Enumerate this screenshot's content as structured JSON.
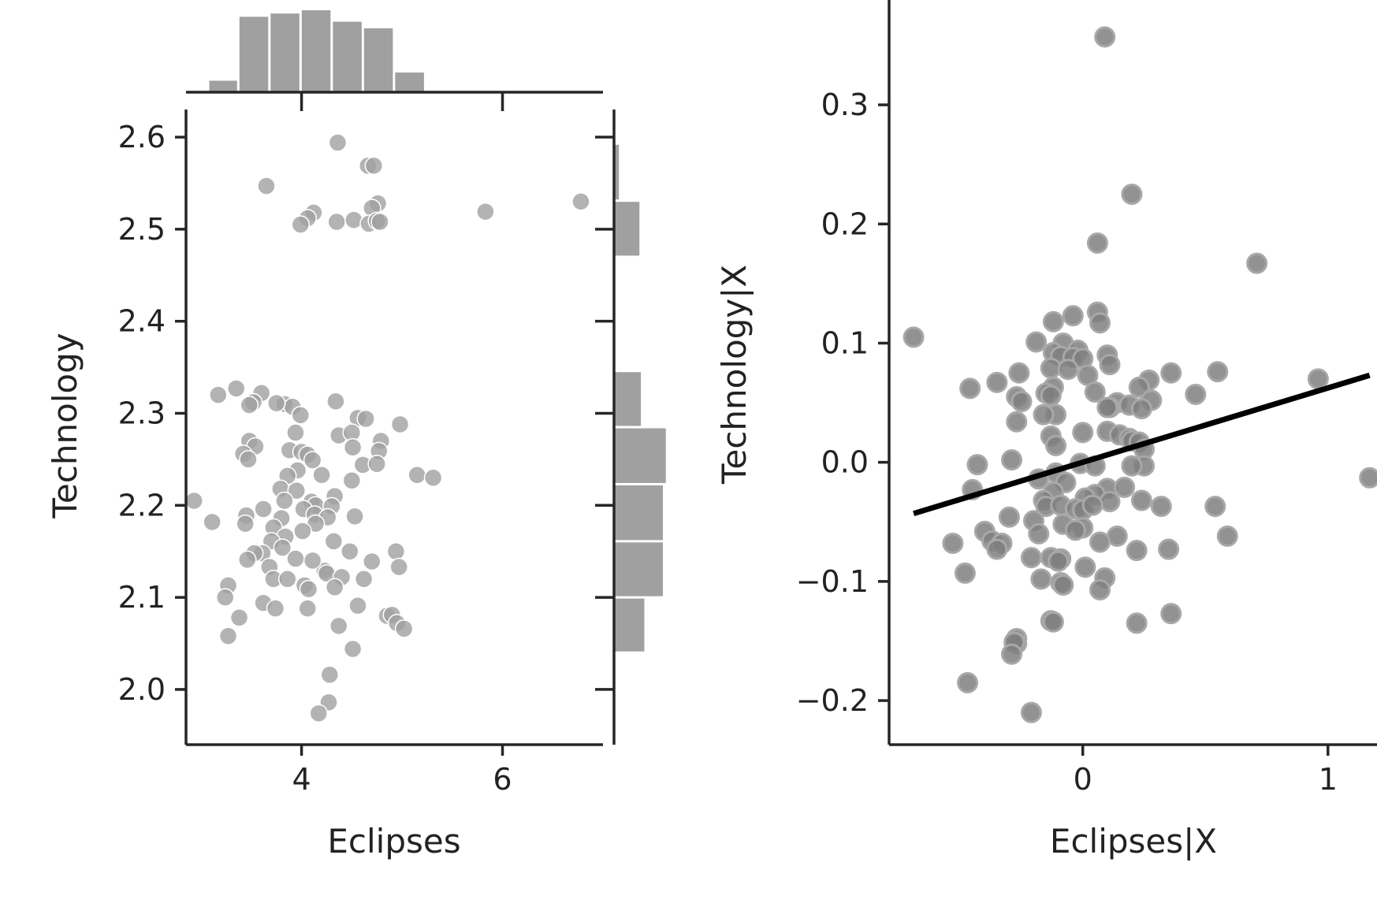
{
  "colors": {
    "marker": "#a0a0a0",
    "marker_edge": "#ffffff",
    "resid_marker": "#7f7f7f",
    "resid_edge": "#a8a8a8",
    "hist_bar": "#a0a0a0",
    "fit_line": "#000000",
    "axis": "#262626"
  },
  "chart_data": [
    {
      "type": "scatter",
      "panel": "joint",
      "xlabel": "Eclipses",
      "ylabel": "Technology",
      "xlim": [
        2.85,
        7.0
      ],
      "ylim": [
        1.94,
        2.63
      ],
      "xticks": [
        4,
        6
      ],
      "yticks": [
        2.0,
        2.1,
        2.2,
        2.3,
        2.4,
        2.5,
        2.6
      ],
      "xtick_labels": [
        "4",
        "6"
      ],
      "ytick_labels": [
        "2.0",
        "2.1",
        "2.2",
        "2.3",
        "2.4",
        "2.5",
        "2.6"
      ],
      "grid": false,
      "points": [
        [
          4.36,
          2.594
        ],
        [
          4.66,
          2.569
        ],
        [
          4.72,
          2.569
        ],
        [
          3.65,
          2.547
        ],
        [
          4.76,
          2.528
        ],
        [
          4.7,
          2.523
        ],
        [
          6.78,
          2.53
        ],
        [
          5.83,
          2.519
        ],
        [
          4.12,
          2.518
        ],
        [
          4.06,
          2.512
        ],
        [
          3.99,
          2.505
        ],
        [
          4.35,
          2.508
        ],
        [
          4.52,
          2.51
        ],
        [
          4.67,
          2.506
        ],
        [
          4.75,
          2.509
        ],
        [
          4.78,
          2.508
        ],
        [
          3.35,
          2.327
        ],
        [
          3.17,
          2.32
        ],
        [
          3.6,
          2.322
        ],
        [
          3.52,
          2.312
        ],
        [
          3.48,
          2.309
        ],
        [
          3.83,
          2.31
        ],
        [
          3.91,
          2.307
        ],
        [
          3.75,
          2.311
        ],
        [
          3.99,
          2.298
        ],
        [
          4.34,
          2.313
        ],
        [
          4.56,
          2.295
        ],
        [
          4.64,
          2.294
        ],
        [
          4.98,
          2.288
        ],
        [
          3.94,
          2.279
        ],
        [
          4.37,
          2.276
        ],
        [
          4.5,
          2.279
        ],
        [
          3.48,
          2.27
        ],
        [
          3.54,
          2.264
        ],
        [
          4.79,
          2.27
        ],
        [
          3.88,
          2.26
        ],
        [
          4.0,
          2.258
        ],
        [
          4.06,
          2.255
        ],
        [
          4.77,
          2.259
        ],
        [
          4.51,
          2.263
        ],
        [
          3.42,
          2.256
        ],
        [
          3.47,
          2.25
        ],
        [
          4.11,
          2.249
        ],
        [
          4.61,
          2.244
        ],
        [
          4.75,
          2.245
        ],
        [
          3.96,
          2.238
        ],
        [
          3.86,
          2.232
        ],
        [
          4.2,
          2.233
        ],
        [
          5.15,
          2.233
        ],
        [
          5.31,
          2.23
        ],
        [
          4.5,
          2.227
        ],
        [
          3.79,
          2.218
        ],
        [
          3.95,
          2.216
        ],
        [
          4.33,
          2.21
        ],
        [
          2.93,
          2.205
        ],
        [
          3.83,
          2.205
        ],
        [
          4.1,
          2.204
        ],
        [
          4.14,
          2.2
        ],
        [
          4.3,
          2.199
        ],
        [
          4.02,
          2.196
        ],
        [
          3.62,
          2.196
        ],
        [
          4.13,
          2.19
        ],
        [
          3.45,
          2.189
        ],
        [
          4.53,
          2.188
        ],
        [
          3.11,
          2.182
        ],
        [
          4.26,
          2.187
        ],
        [
          3.8,
          2.186
        ],
        [
          4.14,
          2.18
        ],
        [
          3.44,
          2.18
        ],
        [
          3.72,
          2.176
        ],
        [
          4.01,
          2.172
        ],
        [
          3.84,
          2.166
        ],
        [
          4.32,
          2.161
        ],
        [
          3.7,
          2.161
        ],
        [
          3.81,
          2.154
        ],
        [
          3.61,
          2.148
        ],
        [
          3.53,
          2.148
        ],
        [
          3.94,
          2.142
        ],
        [
          4.48,
          2.15
        ],
        [
          4.94,
          2.15
        ],
        [
          3.46,
          2.141
        ],
        [
          4.23,
          2.129
        ],
        [
          4.7,
          2.139
        ],
        [
          3.68,
          2.133
        ],
        [
          4.11,
          2.14
        ],
        [
          4.25,
          2.126
        ],
        [
          4.4,
          2.122
        ],
        [
          4.62,
          2.12
        ],
        [
          3.72,
          2.12
        ],
        [
          3.86,
          2.12
        ],
        [
          4.03,
          2.113
        ],
        [
          3.27,
          2.113
        ],
        [
          4.07,
          2.109
        ],
        [
          4.33,
          2.111
        ],
        [
          4.97,
          2.133
        ],
        [
          3.24,
          2.1
        ],
        [
          3.62,
          2.094
        ],
        [
          3.74,
          2.088
        ],
        [
          4.06,
          2.088
        ],
        [
          4.56,
          2.091
        ],
        [
          4.85,
          2.08
        ],
        [
          4.9,
          2.081
        ],
        [
          3.38,
          2.078
        ],
        [
          4.37,
          2.069
        ],
        [
          4.95,
          2.072
        ],
        [
          5.02,
          2.066
        ],
        [
          3.27,
          2.058
        ],
        [
          4.51,
          2.044
        ],
        [
          4.28,
          2.016
        ],
        [
          4.27,
          1.986
        ],
        [
          4.17,
          1.974
        ]
      ]
    },
    {
      "type": "bar",
      "panel": "marginal-x-histogram",
      "orientation": "vertical",
      "bin_edges": [
        3.07,
        3.37,
        3.68,
        3.99,
        4.3,
        4.61,
        4.92,
        5.23
      ],
      "counts": [
        0.14,
        0.92,
        0.96,
        1.0,
        0.86,
        0.78,
        0.24
      ],
      "xlim": [
        2.85,
        7.0
      ]
    },
    {
      "type": "bar",
      "panel": "marginal-y-histogram",
      "orientation": "horizontal",
      "bin_edges": [
        2.04,
        2.1,
        2.161,
        2.223,
        2.285,
        2.346,
        2.408,
        2.47,
        2.531,
        2.593
      ],
      "counts": [
        0.62,
        1.0,
        1.0,
        1.06,
        0.55,
        0.0,
        0.0,
        0.52,
        0.1
      ],
      "ylim": [
        1.94,
        2.63
      ]
    },
    {
      "type": "scatter",
      "panel": "partial-regression",
      "xlabel": "Eclipses|X",
      "ylabel": "Technology|X",
      "xlim": [
        -0.79,
        1.2
      ],
      "ylim": [
        -0.237,
        0.388
      ],
      "xticks": [
        0,
        1
      ],
      "yticks": [
        -0.2,
        -0.1,
        0.0,
        0.1,
        0.2,
        0.3
      ],
      "xtick_labels": [
        "0",
        "1"
      ],
      "ytick_labels": [
        "−0.2",
        "−0.1",
        "0.0",
        "0.1",
        "0.2",
        "0.3"
      ],
      "grid": false,
      "fit_line": {
        "x": [
          -0.69,
          1.17
        ],
        "y": [
          -0.043,
          0.073
        ]
      },
      "points": [
        [
          0.09,
          0.357
        ],
        [
          0.2,
          0.225
        ],
        [
          0.06,
          0.184
        ],
        [
          0.71,
          0.167
        ],
        [
          0.06,
          0.126
        ],
        [
          0.07,
          0.117
        ],
        [
          -0.04,
          0.123
        ],
        [
          -0.12,
          0.118
        ],
        [
          -0.69,
          0.105
        ],
        [
          -0.19,
          0.101
        ],
        [
          -0.08,
          0.1
        ],
        [
          -0.02,
          0.094
        ],
        [
          -0.12,
          0.092
        ],
        [
          -0.09,
          0.089
        ],
        [
          0.1,
          0.09
        ],
        [
          -0.04,
          0.088
        ],
        [
          0.0,
          0.087
        ],
        [
          0.11,
          0.082
        ],
        [
          -0.13,
          0.079
        ],
        [
          -0.06,
          0.078
        ],
        [
          -0.26,
          0.075
        ],
        [
          0.55,
          0.076
        ],
        [
          0.96,
          0.07
        ],
        [
          0.36,
          0.075
        ],
        [
          -0.35,
          0.067
        ],
        [
          -0.46,
          0.062
        ],
        [
          0.02,
          0.073
        ],
        [
          0.27,
          0.069
        ],
        [
          0.23,
          0.063
        ],
        [
          -0.12,
          0.063
        ],
        [
          -0.15,
          0.058
        ],
        [
          0.05,
          0.059
        ],
        [
          -0.13,
          0.056
        ],
        [
          -0.27,
          0.055
        ],
        [
          0.46,
          0.057
        ],
        [
          -0.25,
          0.051
        ],
        [
          0.14,
          0.05
        ],
        [
          0.11,
          0.046
        ],
        [
          0.19,
          0.048
        ],
        [
          0.28,
          0.052
        ],
        [
          0.1,
          0.046
        ],
        [
          -0.11,
          0.04
        ],
        [
          -0.16,
          0.04
        ],
        [
          0.24,
          0.045
        ],
        [
          -0.27,
          0.034
        ],
        [
          0.0,
          0.025
        ],
        [
          0.1,
          0.026
        ],
        [
          0.15,
          0.023
        ],
        [
          0.19,
          0.02
        ],
        [
          -0.13,
          0.022
        ],
        [
          0.2,
          0.018
        ],
        [
          0.23,
          0.017
        ],
        [
          -0.11,
          0.014
        ],
        [
          0.25,
          0.011
        ],
        [
          -0.29,
          0.002
        ],
        [
          -0.43,
          -0.002
        ],
        [
          0.25,
          -0.003
        ],
        [
          -0.01,
          -0.001
        ],
        [
          0.05,
          -0.003
        ],
        [
          0.2,
          -0.003
        ],
        [
          -0.11,
          -0.009
        ],
        [
          -0.18,
          -0.014
        ],
        [
          -0.07,
          -0.017
        ],
        [
          -0.45,
          -0.023
        ],
        [
          0.1,
          -0.022
        ],
        [
          0.17,
          -0.021
        ],
        [
          0.05,
          -0.027
        ],
        [
          -0.12,
          -0.025
        ],
        [
          -0.16,
          -0.032
        ],
        [
          0.01,
          -0.03
        ],
        [
          0.24,
          -0.032
        ],
        [
          0.32,
          -0.037
        ],
        [
          -0.15,
          -0.037
        ],
        [
          -0.09,
          -0.036
        ],
        [
          0.11,
          -0.033
        ],
        [
          -0.03,
          -0.039
        ],
        [
          0.0,
          -0.04
        ],
        [
          0.04,
          -0.036
        ],
        [
          0.54,
          -0.037
        ],
        [
          1.17,
          -0.013
        ],
        [
          -0.2,
          -0.049
        ],
        [
          -0.3,
          -0.046
        ],
        [
          -0.08,
          -0.052
        ],
        [
          0.0,
          -0.055
        ],
        [
          -0.03,
          -0.057
        ],
        [
          -0.4,
          -0.058
        ],
        [
          -0.18,
          -0.06
        ],
        [
          0.14,
          -0.062
        ],
        [
          -0.37,
          -0.066
        ],
        [
          0.59,
          -0.062
        ],
        [
          -0.33,
          -0.068
        ],
        [
          -0.53,
          -0.068
        ],
        [
          -0.35,
          -0.073
        ],
        [
          0.07,
          -0.067
        ],
        [
          0.22,
          -0.074
        ],
        [
          0.35,
          -0.073
        ],
        [
          -0.21,
          -0.08
        ],
        [
          -0.13,
          -0.08
        ],
        [
          -0.09,
          -0.081
        ],
        [
          -0.1,
          -0.083
        ],
        [
          0.01,
          -0.088
        ],
        [
          -0.48,
          -0.093
        ],
        [
          -0.17,
          -0.098
        ],
        [
          0.09,
          -0.097
        ],
        [
          -0.09,
          -0.101
        ],
        [
          -0.08,
          -0.103
        ],
        [
          0.07,
          -0.107
        ],
        [
          -0.13,
          -0.133
        ],
        [
          -0.12,
          -0.134
        ],
        [
          0.22,
          -0.135
        ],
        [
          0.36,
          -0.127
        ],
        [
          -0.27,
          -0.148
        ],
        [
          -0.27,
          -0.152
        ],
        [
          -0.28,
          -0.151
        ],
        [
          -0.29,
          -0.161
        ],
        [
          -0.47,
          -0.185
        ],
        [
          -0.21,
          -0.21
        ]
      ]
    }
  ]
}
